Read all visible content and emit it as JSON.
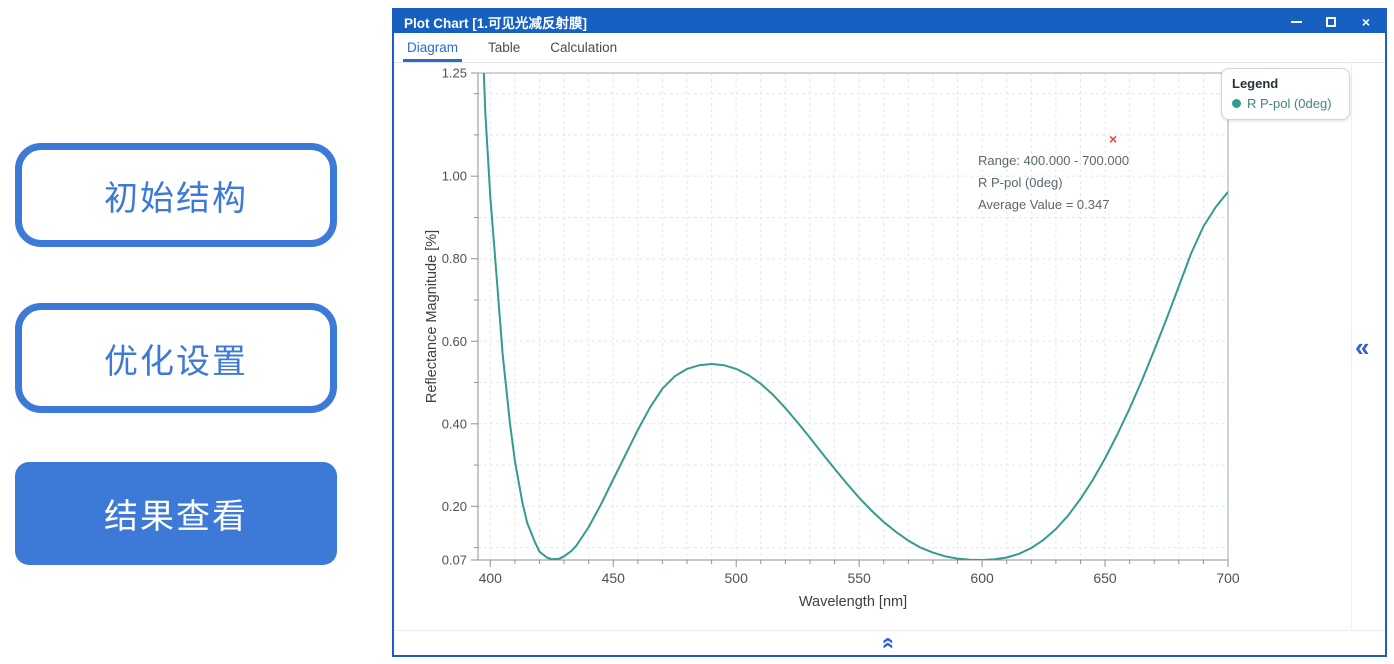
{
  "side_buttons": [
    {
      "label": "初始结构",
      "style": "outline"
    },
    {
      "label": "优化设置",
      "style": "outline"
    },
    {
      "label": "结果查看",
      "style": "filled"
    }
  ],
  "window": {
    "title": "Plot Chart [1.可见光减反射膜]",
    "controls": {
      "minimize": "minimize",
      "maximize": "maximize",
      "close": "×"
    }
  },
  "tabs": [
    {
      "label": "Diagram",
      "active": true
    },
    {
      "label": "Table",
      "active": false
    },
    {
      "label": "Calculation",
      "active": false
    }
  ],
  "legend": {
    "title": "Legend",
    "items": [
      {
        "label": "R P-pol (0deg)",
        "color": "#2e9c8e"
      }
    ]
  },
  "annotation": {
    "line1": "Range: 400.000 - 700.000",
    "line2": "R P-pol (0deg)",
    "line3": "Average Value = 0.347",
    "close_glyph": "×"
  },
  "collapse": {
    "right_glyph": "«",
    "up_glyph": "«"
  },
  "colors": {
    "titlebar": "#1660c2",
    "accent_blue": "#3d7ad8",
    "tab_active": "#2a6bd0",
    "curve": "#349b8f",
    "grid": "#e4e7ea",
    "axis": "#8a9299",
    "border_light": "#b9c7cf",
    "tick_text": "#4d5156",
    "annotation_red": "#e24a41"
  },
  "chart_data": {
    "type": "line",
    "title": "",
    "xlabel": "Wavelength [nm]",
    "ylabel": "Reflectance Magnitude [%]",
    "xlim": [
      395,
      700
    ],
    "ylim": [
      0.07,
      1.25
    ],
    "x_ticks": [
      400,
      450,
      500,
      550,
      600,
      650,
      700
    ],
    "x_minor_step": 10,
    "y_ticks": [
      0.07,
      0.2,
      0.4,
      0.6,
      0.8,
      1.0,
      1.25
    ],
    "y_tick_labels": [
      "0.07",
      "0.20",
      "0.40",
      "0.60",
      "0.80",
      "1.00",
      "1.25"
    ],
    "y_minor_ticks": [
      0.1,
      0.3,
      0.5,
      0.7,
      0.9,
      1.1,
      1.2
    ],
    "grid": true,
    "grid_style": "dashed",
    "legend_position": "top-right",
    "series": [
      {
        "name": "R P-pol (0deg)",
        "color": "#349b8f",
        "x": [
          395,
          398,
          400,
          402,
          405,
          408,
          410,
          413,
          415,
          418,
          420,
          423,
          425,
          428,
          430,
          433,
          435,
          440,
          445,
          450,
          455,
          460,
          465,
          470,
          475,
          480,
          485,
          490,
          495,
          500,
          505,
          510,
          515,
          520,
          525,
          530,
          535,
          540,
          545,
          550,
          555,
          560,
          565,
          570,
          575,
          580,
          585,
          590,
          595,
          600,
          605,
          610,
          615,
          620,
          625,
          630,
          635,
          640,
          645,
          650,
          655,
          660,
          665,
          670,
          675,
          680,
          685,
          690,
          695,
          700
        ],
        "values": [
          1.62,
          1.15,
          0.95,
          0.8,
          0.57,
          0.4,
          0.31,
          0.21,
          0.16,
          0.115,
          0.09,
          0.076,
          0.072,
          0.073,
          0.079,
          0.092,
          0.105,
          0.15,
          0.205,
          0.265,
          0.325,
          0.385,
          0.44,
          0.485,
          0.515,
          0.533,
          0.542,
          0.545,
          0.542,
          0.533,
          0.518,
          0.497,
          0.47,
          0.438,
          0.403,
          0.366,
          0.328,
          0.291,
          0.255,
          0.221,
          0.19,
          0.162,
          0.138,
          0.117,
          0.1,
          0.088,
          0.079,
          0.0735,
          0.0708,
          0.07,
          0.0715,
          0.076,
          0.085,
          0.099,
          0.119,
          0.145,
          0.178,
          0.218,
          0.264,
          0.316,
          0.374,
          0.437,
          0.505,
          0.578,
          0.654,
          0.733,
          0.813,
          0.878,
          0.925,
          0.962
        ]
      }
    ],
    "annotations": [
      {
        "text": "Range: 400.000 - 700.000"
      },
      {
        "text": "R P-pol (0deg)"
      },
      {
        "text": "Average Value = 0.347"
      }
    ]
  }
}
